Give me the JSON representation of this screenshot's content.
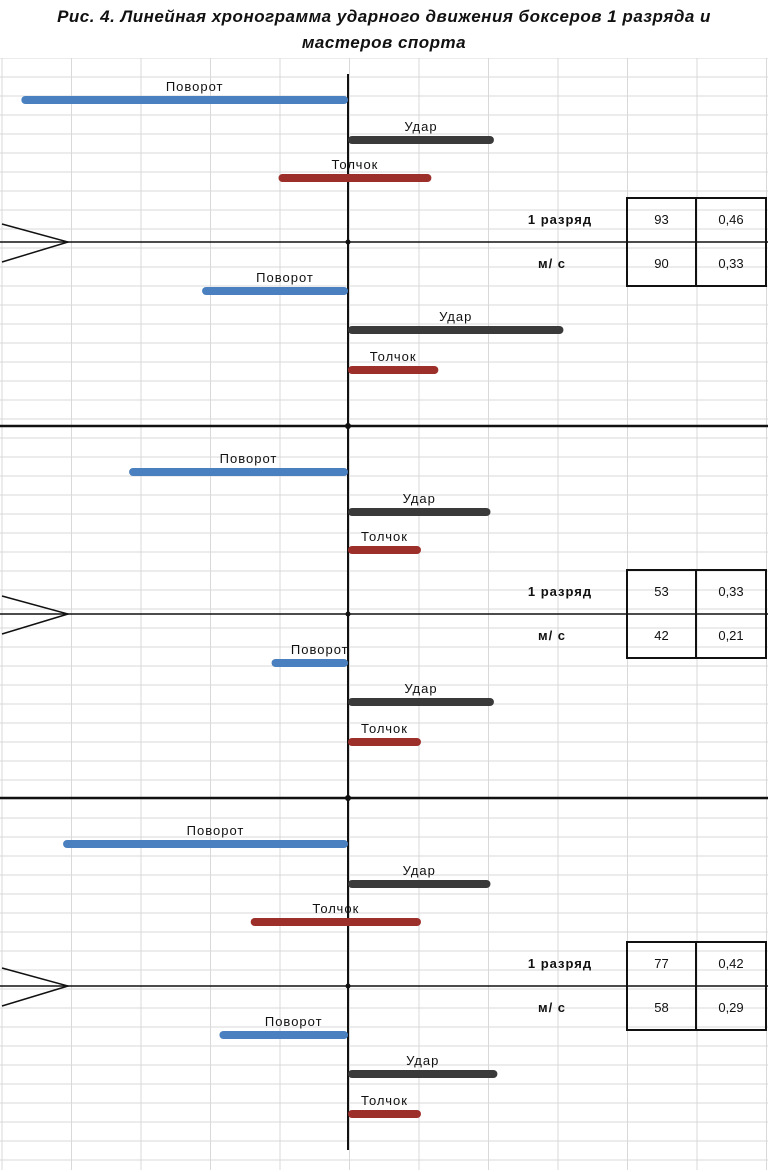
{
  "title_line1": "Рис. 4. Линейная хронограмма ударного движения боксеров 1 разряда и",
  "title_line2": "мастеров спорта",
  "colors": {
    "Поворот": "#4a80bf",
    "Удар": "#3a3a3a",
    "Толчок": "#9c2f2a",
    "grid": "#d9d9d9"
  },
  "chart_data": {
    "type": "gantt",
    "panels": [
      {
        "upper": [
          {
            "label": "Поворот",
            "start": -4.7,
            "end": 0
          },
          {
            "label": "Удар",
            "start": 0,
            "end": 2.1
          },
          {
            "label": "Толчок",
            "start": -1.0,
            "end": 1.2
          }
        ],
        "lower": [
          {
            "label": "Поворот",
            "start": -2.1,
            "end": 0
          },
          {
            "label": "Удар",
            "start": 0,
            "end": 3.1
          },
          {
            "label": "Толчок",
            "start": 0,
            "end": 1.3
          }
        ],
        "table": {
          "rows": [
            {
              "label": "1 разряд",
              "v1": "93",
              "v2": "0,46"
            },
            {
              "label": "м/ с",
              "v1": "90",
              "v2": "0,33"
            }
          ]
        }
      },
      {
        "upper": [
          {
            "label": "Поворот",
            "start": -3.15,
            "end": 0
          },
          {
            "label": "Удар",
            "start": 0,
            "end": 2.05
          },
          {
            "label": "Толчок",
            "start": 0,
            "end": 1.05
          }
        ],
        "lower": [
          {
            "label": "Поворот",
            "start": -1.1,
            "end": 0
          },
          {
            "label": "Удар",
            "start": 0,
            "end": 2.1
          },
          {
            "label": "Толчок",
            "start": 0,
            "end": 1.05
          }
        ],
        "table": {
          "rows": [
            {
              "label": "1 разряд",
              "v1": "53",
              "v2": "0,33"
            },
            {
              "label": "м/ с",
              "v1": "42",
              "v2": "0,21"
            }
          ]
        }
      },
      {
        "upper": [
          {
            "label": "Поворот",
            "start": -4.1,
            "end": 0
          },
          {
            "label": "Удар",
            "start": 0,
            "end": 2.05
          },
          {
            "label": "Толчок",
            "start": -1.4,
            "end": 1.05
          }
        ],
        "lower": [
          {
            "label": "Поворот",
            "start": -1.85,
            "end": 0
          },
          {
            "label": "Удар",
            "start": 0,
            "end": 2.15
          },
          {
            "label": "Толчок",
            "start": 0,
            "end": 1.05
          }
        ],
        "table": {
          "rows": [
            {
              "label": "1 разряд",
              "v1": "77",
              "v2": "0,42"
            },
            {
              "label": "м/ с",
              "v1": "58",
              "v2": "0,29"
            }
          ]
        }
      }
    ]
  }
}
